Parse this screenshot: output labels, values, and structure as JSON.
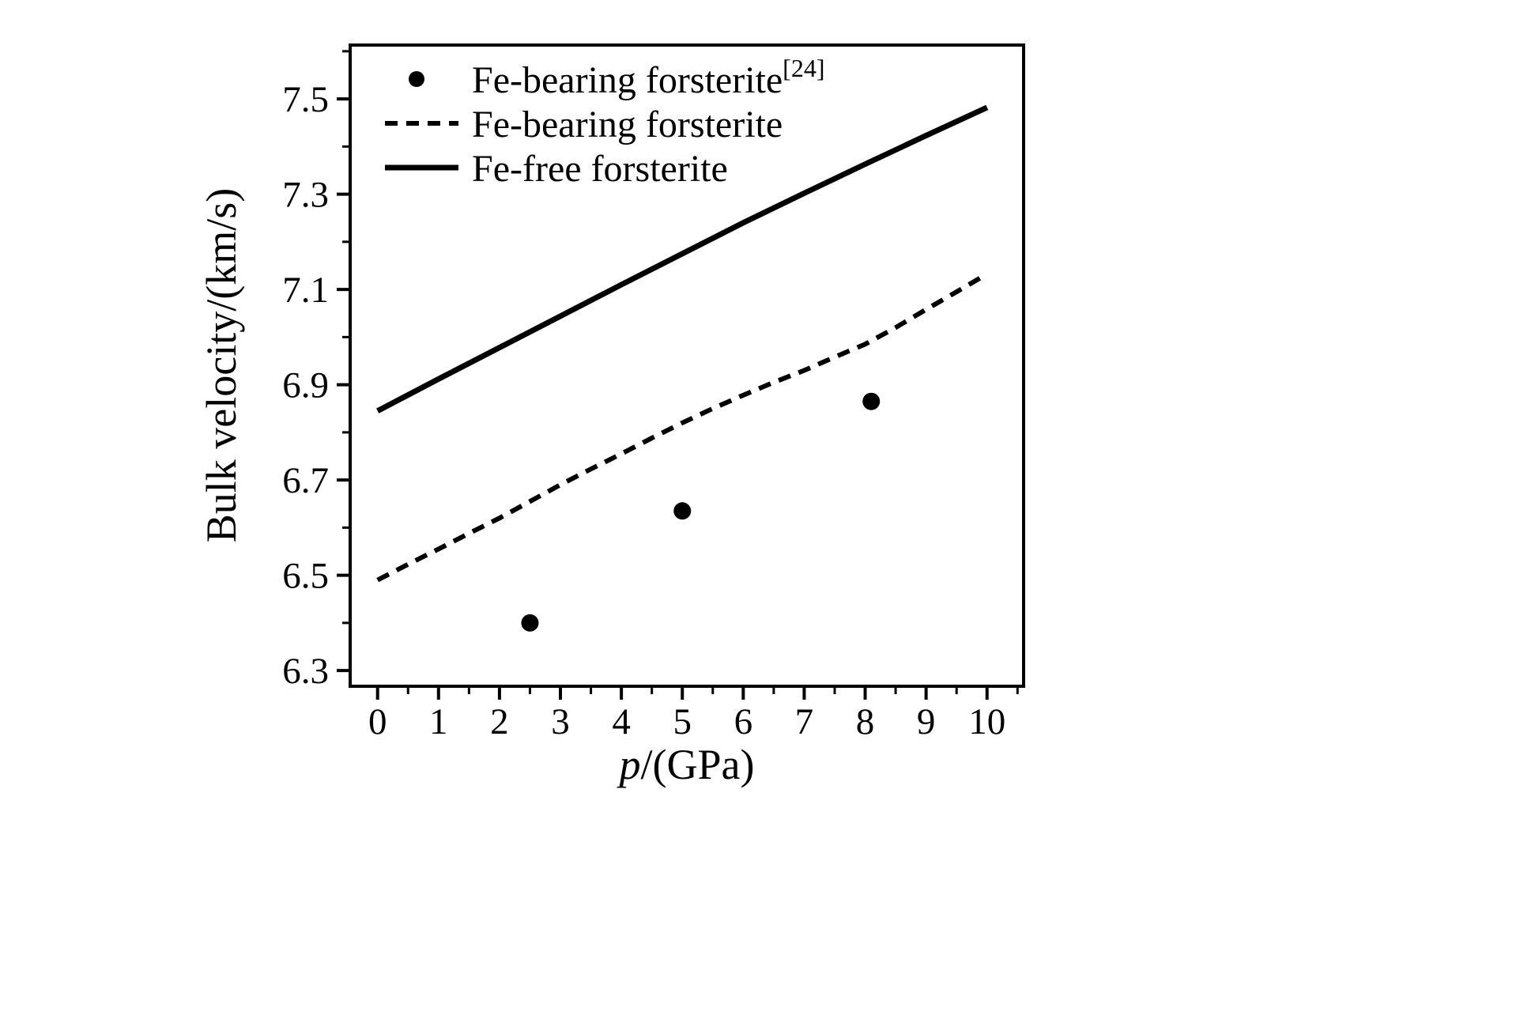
{
  "figure": {
    "background": "#ffffff",
    "ink": "#000000"
  },
  "chart_data": {
    "type": "line",
    "title": "",
    "xlabel_italic": "p",
    "xlabel_rest": "/(GPa)",
    "ylabel": "Bulk velocity/(km/s)",
    "xlim": [
      -0.45,
      10.6
    ],
    "ylim": [
      6.267,
      7.613
    ],
    "x_major_ticks": [
      0,
      1,
      2,
      3,
      4,
      5,
      6,
      7,
      8,
      9,
      10
    ],
    "x_tick_labels": [
      "0",
      "1",
      "2",
      "3",
      "4",
      "5",
      "6",
      "7",
      "8",
      "9",
      "10"
    ],
    "x_minor_step": 0.5,
    "y_major_ticks": [
      6.3,
      6.5,
      6.7,
      6.9,
      7.1,
      7.3,
      7.5
    ],
    "y_tick_labels": [
      "6.3",
      "6.5",
      "6.7",
      "6.9",
      "7.1",
      "7.3",
      "7.5"
    ],
    "y_minor_step": 0.1,
    "grid": false,
    "legend_position": "top-left-inside",
    "series": [
      {
        "name": "Fe-bearing forsterite [24]",
        "type": "scatter",
        "x": [
          2.5,
          5.0,
          8.1
        ],
        "y": [
          6.4,
          6.635,
          6.865
        ]
      },
      {
        "name": "Fe-bearing forsterite",
        "type": "line",
        "style": "dashed",
        "x": [
          0,
          0.5,
          1,
          1.5,
          2,
          2.5,
          3,
          3.5,
          4,
          4.5,
          5,
          5.5,
          6,
          6.5,
          7,
          7.5,
          8,
          8.5,
          9,
          9.5,
          9.9
        ],
        "y": [
          6.49,
          6.523,
          6.555,
          6.588,
          6.62,
          6.655,
          6.69,
          6.723,
          6.755,
          6.788,
          6.82,
          6.85,
          6.878,
          6.905,
          6.93,
          6.958,
          6.985,
          7.02,
          7.058,
          7.095,
          7.125
        ]
      },
      {
        "name": "Fe-free forsterite",
        "type": "line",
        "style": "solid",
        "x": [
          0,
          1,
          2,
          3,
          4,
          5,
          6,
          7,
          8,
          9,
          10
        ],
        "y": [
          6.845,
          6.912,
          6.978,
          7.044,
          7.11,
          7.175,
          7.24,
          7.302,
          7.363,
          7.423,
          7.482
        ]
      }
    ]
  },
  "legend": {
    "entries": [
      {
        "label": "Fe-bearing forsterite",
        "sup": "[24]",
        "marker": "dot"
      },
      {
        "label": "Fe-bearing forsterite",
        "sup": "",
        "marker": "dashed-line"
      },
      {
        "label": "Fe-free forsterite",
        "sup": "",
        "marker": "solid-line"
      }
    ]
  }
}
